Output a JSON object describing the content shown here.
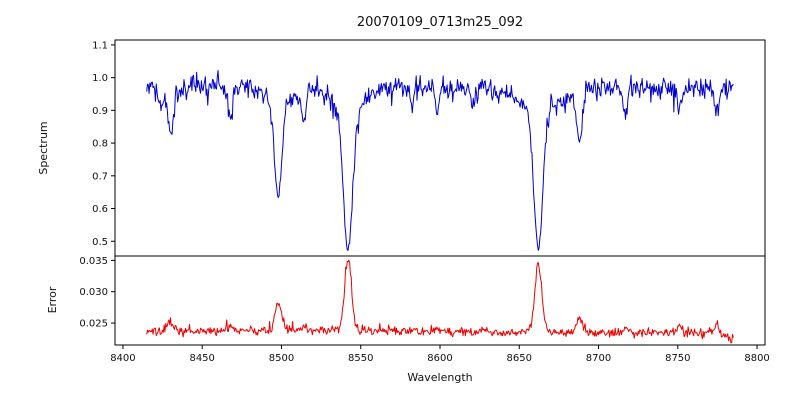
{
  "title": "20070109_0713m25_092",
  "chart_data": {
    "type": "line",
    "title": "20070109_0713m25_092",
    "xlabel": "Wavelength",
    "xlim": [
      8395,
      8805
    ],
    "x_range": [
      8415,
      8785
    ],
    "sample_step": 0.5,
    "xticks": [
      8400,
      8450,
      8500,
      8550,
      8600,
      8650,
      8700,
      8750,
      8800
    ],
    "xtick_labels": [
      "8400",
      "8450",
      "8500",
      "8550",
      "8600",
      "8650",
      "8700",
      "8750",
      "8800"
    ],
    "legend": "none",
    "grid": false,
    "panels": [
      {
        "name": "spectrum",
        "ylabel": "Spectrum",
        "color": "#0000cd",
        "ylim": [
          0.455,
          1.115
        ],
        "yticks": [
          0.5,
          0.6,
          0.7,
          0.8,
          0.9,
          1.0,
          1.1
        ],
        "ytick_labels": [
          "0.5",
          "0.6",
          "0.7",
          "0.8",
          "0.9",
          "1.0",
          "1.1"
        ],
        "continuum": 0.968,
        "noise_std": 0.016,
        "seed": 1234,
        "absorption_lines": [
          {
            "center": 8424,
            "depth": 0.07,
            "sigma": 1.4
          },
          {
            "center": 8430,
            "depth": 0.15,
            "sigma": 1.8
          },
          {
            "center": 8468,
            "depth": 0.1,
            "sigma": 1.5
          },
          {
            "center": 8498,
            "depth": 0.29,
            "sigma": 2.3,
            "wing_depth": 0.05,
            "wing_sigma": 8
          },
          {
            "center": 8514,
            "depth": 0.1,
            "sigma": 1.4
          },
          {
            "center": 8542,
            "depth": 0.44,
            "sigma": 2.9,
            "wing_depth": 0.07,
            "wing_sigma": 10
          },
          {
            "center": 8582,
            "depth": 0.06,
            "sigma": 1.2
          },
          {
            "center": 8598,
            "depth": 0.07,
            "sigma": 1.2
          },
          {
            "center": 8621,
            "depth": 0.05,
            "sigma": 1.2
          },
          {
            "center": 8662,
            "depth": 0.43,
            "sigma": 2.8,
            "wing_depth": 0.07,
            "wing_sigma": 10
          },
          {
            "center": 8688,
            "depth": 0.17,
            "sigma": 1.8
          },
          {
            "center": 8717,
            "depth": 0.08,
            "sigma": 1.3
          },
          {
            "center": 8751,
            "depth": 0.07,
            "sigma": 1.3
          },
          {
            "center": 8775,
            "depth": 0.08,
            "sigma": 1.4
          }
        ]
      },
      {
        "name": "error",
        "ylabel": "Error",
        "color": "#ee0000",
        "ylim": [
          0.0215,
          0.0357
        ],
        "yticks": [
          0.025,
          0.03,
          0.035
        ],
        "ytick_labels": [
          "0.025",
          "0.030",
          "0.035"
        ],
        "baseline": 0.0236,
        "noise_std": 0.00035,
        "seed": 99,
        "peaks": [
          {
            "center": 8430,
            "height": 0.0016,
            "sigma": 2.0
          },
          {
            "center": 8468,
            "height": 0.0008,
            "sigma": 1.5
          },
          {
            "center": 8498,
            "height": 0.0042,
            "sigma": 2.2
          },
          {
            "center": 8514,
            "height": 0.0008,
            "sigma": 1.5
          },
          {
            "center": 8542,
            "height": 0.0116,
            "sigma": 2.2
          },
          {
            "center": 8598,
            "height": 0.0006,
            "sigma": 1.4
          },
          {
            "center": 8662,
            "height": 0.0108,
            "sigma": 2.2
          },
          {
            "center": 8688,
            "height": 0.0028,
            "sigma": 1.8
          },
          {
            "center": 8717,
            "height": 0.0008,
            "sigma": 1.4
          },
          {
            "center": 8751,
            "height": 0.0013,
            "sigma": 1.4
          },
          {
            "center": 8775,
            "height": 0.0016,
            "sigma": 1.4
          },
          {
            "center": 8790,
            "height": -0.0013,
            "sigma": 8
          }
        ]
      }
    ]
  }
}
